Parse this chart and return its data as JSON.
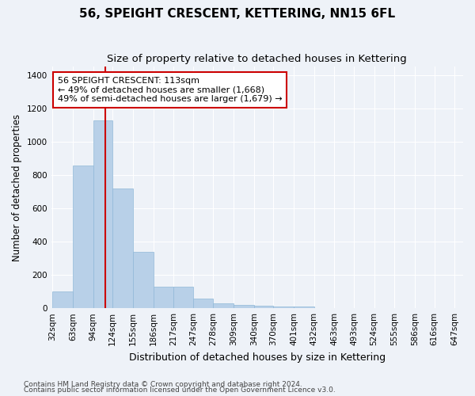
{
  "title": "56, SPEIGHT CRESCENT, KETTERING, NN15 6FL",
  "subtitle": "Size of property relative to detached houses in Kettering",
  "xlabel": "Distribution of detached houses by size in Kettering",
  "ylabel": "Number of detached properties",
  "footnote1": "Contains HM Land Registry data © Crown copyright and database right 2024.",
  "footnote2": "Contains public sector information licensed under the Open Government Licence v3.0.",
  "bin_edges": [
    32,
    63,
    94,
    124,
    155,
    186,
    217,
    247,
    278,
    309,
    340,
    370,
    401,
    432,
    463,
    493,
    524,
    555,
    586,
    616,
    647
  ],
  "bar_heights": [
    100,
    855,
    1130,
    720,
    340,
    130,
    130,
    60,
    30,
    20,
    15,
    12,
    10,
    2,
    2,
    1,
    1,
    0,
    1,
    0
  ],
  "bar_color": "#b8d0e8",
  "bar_edge_color": "#90b8d8",
  "property_size": 113,
  "vline_color": "#cc0000",
  "annotation_line1": "56 SPEIGHT CRESCENT: 113sqm",
  "annotation_line2": "← 49% of detached houses are smaller (1,668)",
  "annotation_line3": "49% of semi-detached houses are larger (1,679) →",
  "annotation_box_color": "#ffffff",
  "annotation_box_edge": "#cc0000",
  "ylim": [
    0,
    1450
  ],
  "yticks": [
    0,
    200,
    400,
    600,
    800,
    1000,
    1200,
    1400
  ],
  "xlim_left": 32,
  "xlim_right": 660,
  "bg_color": "#eef2f8",
  "plot_bg_color": "#eef2f8",
  "grid_color": "#ffffff",
  "title_fontsize": 11,
  "subtitle_fontsize": 9.5,
  "xlabel_fontsize": 9,
  "ylabel_fontsize": 8.5,
  "tick_fontsize": 7.5,
  "annotation_fontsize": 8,
  "footnote_fontsize": 6.5
}
